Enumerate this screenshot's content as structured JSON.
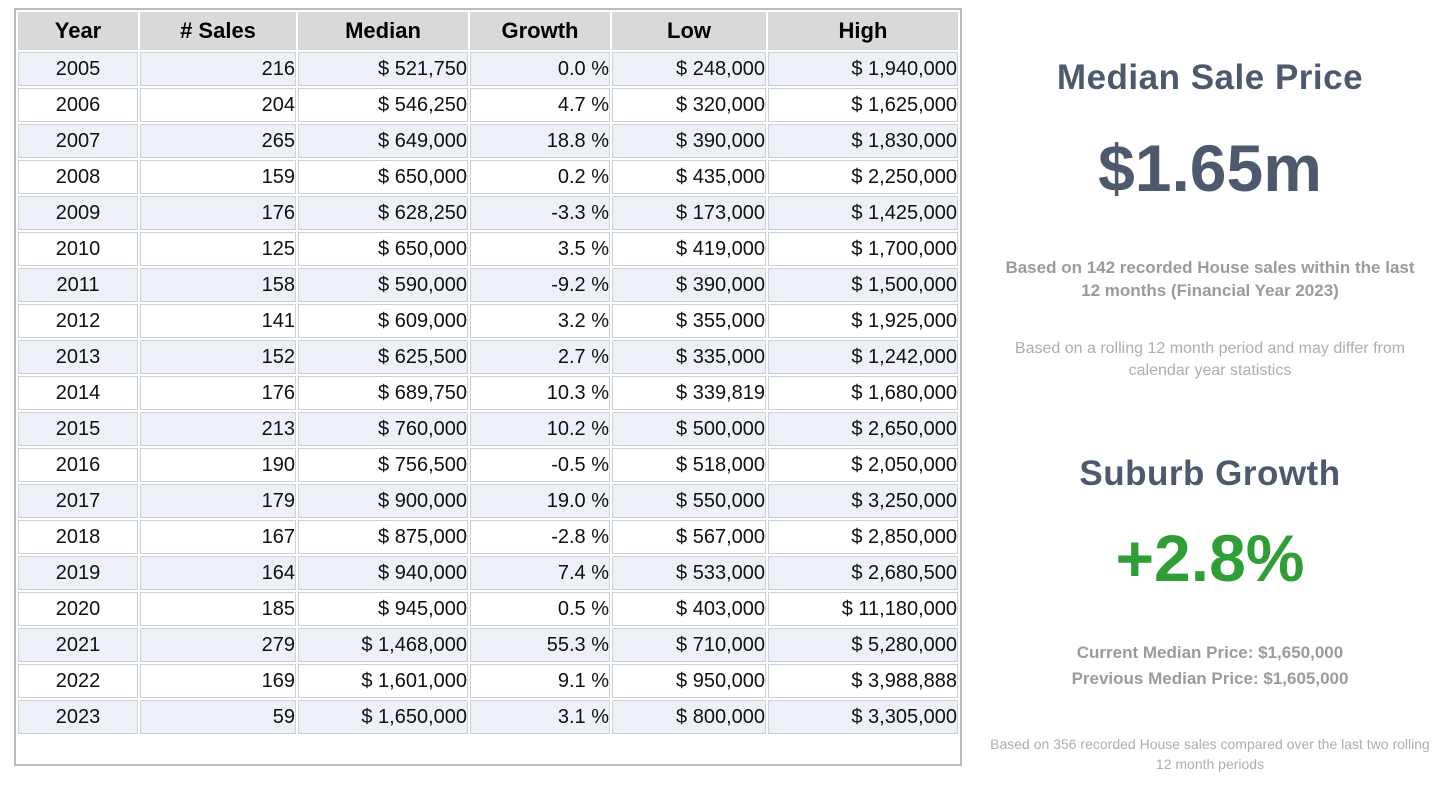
{
  "table": {
    "columns": [
      {
        "key": "year",
        "label": "Year"
      },
      {
        "key": "sales",
        "label": "# Sales"
      },
      {
        "key": "median",
        "label": "Median"
      },
      {
        "key": "growth",
        "label": "Growth"
      },
      {
        "key": "low",
        "label": "Low"
      },
      {
        "key": "high",
        "label": "High"
      }
    ],
    "rows": [
      {
        "year": "2005",
        "sales": "216",
        "median": "$ 521,750",
        "growth": "0.0 %",
        "low": "$ 248,000",
        "high": "$ 1,940,000"
      },
      {
        "year": "2006",
        "sales": "204",
        "median": "$ 546,250",
        "growth": "4.7 %",
        "low": "$ 320,000",
        "high": "$ 1,625,000"
      },
      {
        "year": "2007",
        "sales": "265",
        "median": "$ 649,000",
        "growth": "18.8 %",
        "low": "$ 390,000",
        "high": "$ 1,830,000"
      },
      {
        "year": "2008",
        "sales": "159",
        "median": "$ 650,000",
        "growth": "0.2 %",
        "low": "$ 435,000",
        "high": "$ 2,250,000"
      },
      {
        "year": "2009",
        "sales": "176",
        "median": "$ 628,250",
        "growth": "-3.3 %",
        "low": "$ 173,000",
        "high": "$ 1,425,000"
      },
      {
        "year": "2010",
        "sales": "125",
        "median": "$ 650,000",
        "growth": "3.5 %",
        "low": "$ 419,000",
        "high": "$ 1,700,000"
      },
      {
        "year": "2011",
        "sales": "158",
        "median": "$ 590,000",
        "growth": "-9.2 %",
        "low": "$ 390,000",
        "high": "$ 1,500,000"
      },
      {
        "year": "2012",
        "sales": "141",
        "median": "$ 609,000",
        "growth": "3.2 %",
        "low": "$ 355,000",
        "high": "$ 1,925,000"
      },
      {
        "year": "2013",
        "sales": "152",
        "median": "$ 625,500",
        "growth": "2.7 %",
        "low": "$ 335,000",
        "high": "$ 1,242,000"
      },
      {
        "year": "2014",
        "sales": "176",
        "median": "$ 689,750",
        "growth": "10.3 %",
        "low": "$ 339,819",
        "high": "$ 1,680,000"
      },
      {
        "year": "2015",
        "sales": "213",
        "median": "$ 760,000",
        "growth": "10.2 %",
        "low": "$ 500,000",
        "high": "$ 2,650,000"
      },
      {
        "year": "2016",
        "sales": "190",
        "median": "$ 756,500",
        "growth": "-0.5 %",
        "low": "$ 518,000",
        "high": "$ 2,050,000"
      },
      {
        "year": "2017",
        "sales": "179",
        "median": "$ 900,000",
        "growth": "19.0 %",
        "low": "$ 550,000",
        "high": "$ 3,250,000"
      },
      {
        "year": "2018",
        "sales": "167",
        "median": "$ 875,000",
        "growth": "-2.8 %",
        "low": "$ 567,000",
        "high": "$ 2,850,000"
      },
      {
        "year": "2019",
        "sales": "164",
        "median": "$ 940,000",
        "growth": "7.4 %",
        "low": "$ 533,000",
        "high": "$ 2,680,500"
      },
      {
        "year": "2020",
        "sales": "185",
        "median": "$ 945,000",
        "growth": "0.5 %",
        "low": "$ 403,000",
        "high": "$ 11,180,000"
      },
      {
        "year": "2021",
        "sales": "279",
        "median": "$ 1,468,000",
        "growth": "55.3 %",
        "low": "$ 710,000",
        "high": "$ 5,280,000"
      },
      {
        "year": "2022",
        "sales": "169",
        "median": "$ 1,601,000",
        "growth": "9.1 %",
        "low": "$ 950,000",
        "high": "$ 3,988,888"
      },
      {
        "year": "2023",
        "sales": "59",
        "median": "$ 1,650,000",
        "growth": "3.1 %",
        "low": "$ 800,000",
        "high": "$ 3,305,000"
      }
    ]
  },
  "panel": {
    "median_title": "Median Sale Price",
    "median_value": "$1.65m",
    "median_note_bold": "Based on 142 recorded House sales within the last 12 months (Financial Year 2023)",
    "median_note_light": "Based on a rolling 12 month period and may differ from calendar year statistics",
    "growth_title": "Suburb Growth",
    "growth_value": "+2.8%",
    "current_median": "Current Median Price: $1,650,000",
    "previous_median": "Previous Median Price: $1,605,000",
    "growth_note": "Based on 356 recorded House sales compared over the last two rolling 12 month periods"
  },
  "colors": {
    "growth_positive": "#3cb44a",
    "growth_negative": "#e23a2e",
    "heading_slate": "#4d5a6e",
    "big_growth_green": "#2f9e36",
    "note_bold_gray": "#9b9b9b",
    "note_light_gray": "#aeaeae",
    "header_row_bg": "#d9d9d9",
    "odd_row_bg": "#edf1f7",
    "even_row_bg": "#ffffff"
  },
  "chart_data": {
    "type": "table",
    "title": "House sales history by year",
    "columns": [
      "Year",
      "# Sales",
      "Median",
      "Growth %",
      "Low",
      "High"
    ],
    "rows": [
      [
        2005,
        216,
        521750,
        0.0,
        248000,
        1940000
      ],
      [
        2006,
        204,
        546250,
        4.7,
        320000,
        1625000
      ],
      [
        2007,
        265,
        649000,
        18.8,
        390000,
        1830000
      ],
      [
        2008,
        159,
        650000,
        0.2,
        435000,
        2250000
      ],
      [
        2009,
        176,
        628250,
        -3.3,
        173000,
        1425000
      ],
      [
        2010,
        125,
        650000,
        3.5,
        419000,
        1700000
      ],
      [
        2011,
        158,
        590000,
        -9.2,
        390000,
        1500000
      ],
      [
        2012,
        141,
        609000,
        3.2,
        355000,
        1925000
      ],
      [
        2013,
        152,
        625500,
        2.7,
        335000,
        1242000
      ],
      [
        2014,
        176,
        689750,
        10.3,
        339819,
        1680000
      ],
      [
        2015,
        213,
        760000,
        10.2,
        500000,
        2650000
      ],
      [
        2016,
        190,
        756500,
        -0.5,
        518000,
        2050000
      ],
      [
        2017,
        179,
        900000,
        19.0,
        550000,
        3250000
      ],
      [
        2018,
        167,
        875000,
        -2.8,
        567000,
        2850000
      ],
      [
        2019,
        164,
        940000,
        7.4,
        533000,
        2680500
      ],
      [
        2020,
        185,
        945000,
        0.5,
        403000,
        11180000
      ],
      [
        2021,
        279,
        1468000,
        55.3,
        710000,
        5280000
      ],
      [
        2022,
        169,
        1601000,
        9.1,
        950000,
        3988888
      ],
      [
        2023,
        59,
        1650000,
        3.1,
        800000,
        3305000
      ]
    ],
    "summary": {
      "median_sale_price": "$1.65m",
      "suburb_growth_pct": 2.8,
      "current_median_price": 1650000,
      "previous_median_price": 1605000,
      "sales_last_12_months": 142,
      "sales_compared_periods": 356
    }
  }
}
